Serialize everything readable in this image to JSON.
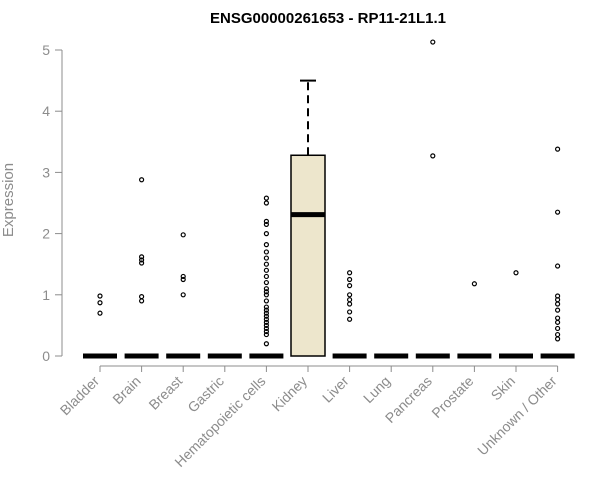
{
  "chart_data": {
    "type": "box",
    "title": "ENSG00000261653 - RP11-21L1.1",
    "xlabel": "",
    "ylabel": "Expression",
    "ylim": [
      0,
      5.2
    ],
    "yticks": [
      0,
      1,
      2,
      3,
      4,
      5
    ],
    "categories": [
      "Bladder",
      "Brain",
      "Breast",
      "Gastric",
      "Hematopoietic cells",
      "Kidney",
      "Liver",
      "Lung",
      "Pancreas",
      "Prostate",
      "Skin",
      "Unknown / Other"
    ],
    "boxes": [
      {
        "min": 0,
        "q1": 0,
        "median": 0,
        "q3": 0,
        "max": 0,
        "outliers": [
          0.7,
          0.87,
          0.98
        ]
      },
      {
        "min": 0,
        "q1": 0,
        "median": 0,
        "q3": 0,
        "max": 0,
        "outliers": [
          0.9,
          0.97,
          1.52,
          1.57,
          1.62,
          2.88
        ]
      },
      {
        "min": 0,
        "q1": 0,
        "median": 0,
        "q3": 0,
        "max": 0,
        "outliers": [
          1.0,
          1.25,
          1.3,
          1.98
        ]
      },
      {
        "min": 0,
        "q1": 0,
        "median": 0,
        "q3": 0,
        "max": 0,
        "outliers": []
      },
      {
        "min": 0,
        "q1": 0,
        "median": 0,
        "q3": 0,
        "max": 0,
        "outliers": [
          0.2,
          0.35,
          0.4,
          0.45,
          0.5,
          0.55,
          0.6,
          0.65,
          0.7,
          0.75,
          0.8,
          0.9,
          1.0,
          1.05,
          1.1,
          1.2,
          1.3,
          1.4,
          1.5,
          1.6,
          1.7,
          1.82,
          2.0,
          2.15,
          2.2,
          2.5,
          2.58
        ]
      },
      {
        "min": 0,
        "q1": 0,
        "median": 2.31,
        "q3": 3.28,
        "max": 4.5,
        "outliers": []
      },
      {
        "min": 0,
        "q1": 0,
        "median": 0,
        "q3": 0,
        "max": 0,
        "outliers": [
          0.6,
          0.72,
          0.85,
          0.92,
          1.0,
          1.15,
          1.25,
          1.36
        ]
      },
      {
        "min": 0,
        "q1": 0,
        "median": 0,
        "q3": 0,
        "max": 0,
        "outliers": []
      },
      {
        "min": 0,
        "q1": 0,
        "median": 0,
        "q3": 0,
        "max": 0,
        "outliers": [
          3.27,
          5.13
        ]
      },
      {
        "min": 0,
        "q1": 0,
        "median": 0,
        "q3": 0,
        "max": 0,
        "outliers": [
          1.18
        ]
      },
      {
        "min": 0,
        "q1": 0,
        "median": 0,
        "q3": 0,
        "max": 0,
        "outliers": [
          1.36
        ]
      },
      {
        "min": 0,
        "q1": 0,
        "median": 0,
        "q3": 0,
        "max": 0,
        "outliers": [
          0.28,
          0.35,
          0.45,
          0.55,
          0.62,
          0.75,
          0.85,
          0.92,
          0.98,
          1.47,
          2.35,
          3.38
        ]
      }
    ],
    "box_fill": "#ede6cc",
    "axis_color": "#8c8c8c",
    "grid": false,
    "legend": "none"
  }
}
